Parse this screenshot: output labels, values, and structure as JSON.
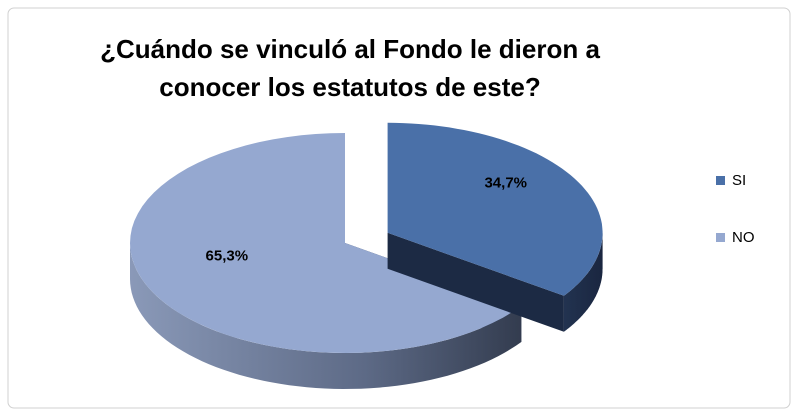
{
  "chart_data": {
    "type": "pie3d",
    "title": "¿Cuándo se vinculó al Fondo le dieron a conocer los estatutos de este?",
    "categories": [
      "SI",
      "NO"
    ],
    "values": [
      34.7,
      65.3
    ],
    "value_labels": [
      "34,7%",
      "65,3%"
    ],
    "colors": [
      "#4a70a8",
      "#95a8d0"
    ],
    "legend": "right",
    "exploded": [
      "SI"
    ]
  }
}
